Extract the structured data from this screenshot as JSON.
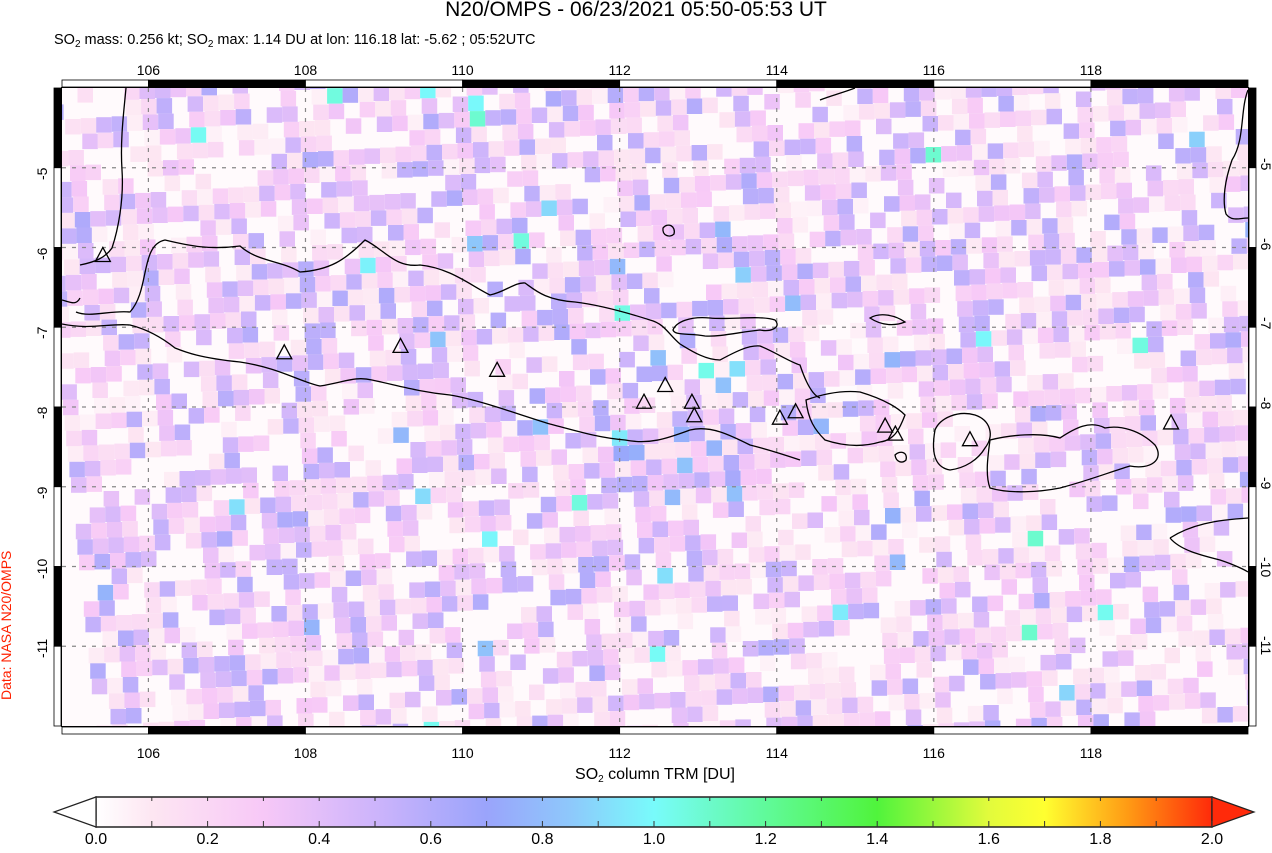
{
  "header": {
    "title": "N20/OMPS - 06/23/2021 05:50-05:53 UT",
    "subtitle_parts": [
      "SO",
      "2",
      " mass: 0.256 kt; SO",
      "2",
      " max: 1.14 DU at lon: 116.18 lat: -5.62 ; 05:52UTC"
    ]
  },
  "credit": "Data: NASA N20/OMPS",
  "map": {
    "lon_range": [
      104.9,
      120.0
    ],
    "lat_range": [
      -4.0,
      -12.0
    ],
    "x_ticks": [
      106,
      108,
      110,
      112,
      114,
      116,
      118
    ],
    "x_tick_labels": [
      "106",
      "108",
      "110",
      "112",
      "114",
      "116",
      "118"
    ],
    "y_ticks": [
      -5,
      -6,
      -7,
      -8,
      -9,
      -10,
      -11
    ],
    "y_tick_labels": [
      "-5",
      "-6",
      "-7",
      "-8",
      "-9",
      "-10",
      "-11"
    ],
    "volcano_marker": "triangle-outline-icon",
    "volcanoes": [
      {
        "lon": 105.42,
        "lat": -6.1
      },
      {
        "lon": 107.73,
        "lat": -7.32
      },
      {
        "lon": 109.21,
        "lat": -7.24
      },
      {
        "lon": 110.44,
        "lat": -7.54
      },
      {
        "lon": 112.31,
        "lat": -7.94
      },
      {
        "lon": 112.58,
        "lat": -7.73
      },
      {
        "lon": 112.92,
        "lat": -7.94
      },
      {
        "lon": 112.95,
        "lat": -8.11
      },
      {
        "lon": 114.04,
        "lat": -8.14
      },
      {
        "lon": 114.24,
        "lat": -8.06
      },
      {
        "lon": 115.38,
        "lat": -8.24
      },
      {
        "lon": 115.51,
        "lat": -8.34
      },
      {
        "lon": 116.46,
        "lat": -8.41
      },
      {
        "lon": 119.02,
        "lat": -8.2
      }
    ],
    "so2_max_point": {
      "lon": 116.18,
      "lat": -5.62,
      "value_du": 1.14
    }
  },
  "colorbar": {
    "label_parts": [
      "SO",
      "2",
      " column TRM [DU]"
    ],
    "min": 0.0,
    "max": 2.0,
    "tick_labels": [
      "0.0",
      "0.2",
      "0.4",
      "0.6",
      "0.8",
      "1.0",
      "1.2",
      "1.4",
      "1.6",
      "1.8",
      "2.0"
    ],
    "stops": [
      {
        "v": 0.0,
        "color": "#ffffff"
      },
      {
        "v": 0.1,
        "color": "#fde6f2"
      },
      {
        "v": 0.3,
        "color": "#f7c8f7"
      },
      {
        "v": 0.5,
        "color": "#cdb4fb"
      },
      {
        "v": 0.7,
        "color": "#9aa4fb"
      },
      {
        "v": 0.85,
        "color": "#8ec8fb"
      },
      {
        "v": 1.0,
        "color": "#78fbfb"
      },
      {
        "v": 1.2,
        "color": "#60fa9a"
      },
      {
        "v": 1.4,
        "color": "#50f43c"
      },
      {
        "v": 1.6,
        "color": "#e2fb3c"
      },
      {
        "v": 1.7,
        "color": "#ffff30"
      },
      {
        "v": 1.85,
        "color": "#ff9a14"
      },
      {
        "v": 2.0,
        "color": "#ff2a0a"
      }
    ],
    "under_color": "#ffffff",
    "over_color": "#ff2a0a"
  }
}
